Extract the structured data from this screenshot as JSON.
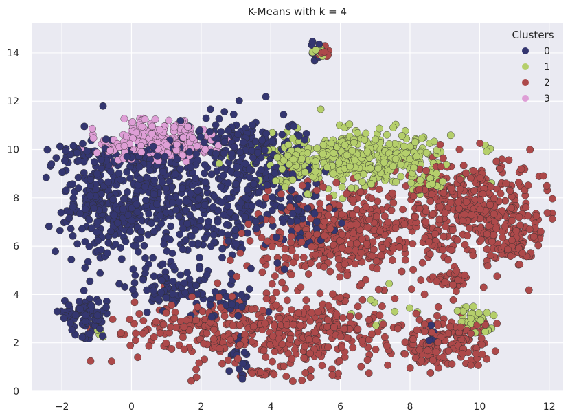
{
  "chart_data": {
    "type": "scatter",
    "title": "K-Means with k = 4",
    "xlabel": "",
    "ylabel": "",
    "xlim": [
      -2.85,
      12.4
    ],
    "ylim": [
      0,
      15.25
    ],
    "xticks": [
      -2,
      0,
      2,
      4,
      6,
      8,
      10,
      12
    ],
    "yticks": [
      0,
      2,
      4,
      6,
      8,
      10,
      12,
      14
    ],
    "grid": true,
    "legend": {
      "title": "Clusters",
      "placement": "top-right"
    },
    "series": [
      {
        "name": "0",
        "color": "#343670",
        "blobs": [
          {
            "cx": 1.6,
            "cy": 7.9,
            "sx": 1.6,
            "sy": 1.3,
            "n": 500
          },
          {
            "cx": 3.6,
            "cy": 9.4,
            "sx": 0.9,
            "sy": 0.9,
            "n": 170
          },
          {
            "cx": -0.8,
            "cy": 7.6,
            "sx": 0.7,
            "sy": 1.1,
            "n": 150
          },
          {
            "cx": 0.0,
            "cy": 9.7,
            "sx": 1.2,
            "sy": 0.35,
            "n": 110
          },
          {
            "cx": -1.3,
            "cy": 3.1,
            "sx": 0.3,
            "sy": 0.4,
            "n": 80
          },
          {
            "cx": 1.0,
            "cy": 4.2,
            "sx": 0.9,
            "sy": 0.4,
            "n": 70
          },
          {
            "cx": 3.1,
            "cy": 1.3,
            "sx": 0.15,
            "sy": 0.4,
            "n": 22
          },
          {
            "cx": 5.3,
            "cy": 14.1,
            "sx": 0.08,
            "sy": 0.2,
            "n": 15
          },
          {
            "cx": 5.0,
            "cy": 7.1,
            "sx": 0.4,
            "sy": 0.6,
            "n": 40
          },
          {
            "cx": 2.5,
            "cy": 3.8,
            "sx": 0.6,
            "sy": 0.3,
            "n": 40
          },
          {
            "cx": 3.0,
            "cy": 10.6,
            "sx": 0.6,
            "sy": 0.3,
            "n": 40
          },
          {
            "cx": 8.7,
            "cy": 2.2,
            "sx": 0.08,
            "sy": 0.2,
            "n": 8
          }
        ]
      },
      {
        "name": "1",
        "color": "#b5cf6b",
        "blobs": [
          {
            "cx": 6.6,
            "cy": 9.6,
            "sx": 1.3,
            "sy": 0.55,
            "n": 430
          },
          {
            "cx": 4.6,
            "cy": 9.3,
            "sx": 0.3,
            "sy": 0.6,
            "n": 40
          },
          {
            "cx": 9.9,
            "cy": 3.0,
            "sx": 0.25,
            "sy": 0.25,
            "n": 45
          },
          {
            "cx": 5.4,
            "cy": 14.1,
            "sx": 0.1,
            "sy": 0.15,
            "n": 10
          },
          {
            "cx": -0.9,
            "cy": 2.4,
            "sx": 0.06,
            "sy": 0.1,
            "n": 5
          },
          {
            "cx": 7.2,
            "cy": 3.5,
            "sx": 0.5,
            "sy": 0.6,
            "n": 10
          },
          {
            "cx": 8.5,
            "cy": 8.6,
            "sx": 0.3,
            "sy": 0.3,
            "n": 25
          }
        ]
      },
      {
        "name": "2",
        "color": "#ad494a",
        "blobs": [
          {
            "cx": 6.0,
            "cy": 6.5,
            "sx": 1.3,
            "sy": 0.9,
            "n": 420
          },
          {
            "cx": 9.6,
            "cy": 7.6,
            "sx": 1.1,
            "sy": 1.0,
            "n": 380
          },
          {
            "cx": 4.6,
            "cy": 2.5,
            "sx": 1.6,
            "sy": 0.85,
            "n": 380
          },
          {
            "cx": 9.0,
            "cy": 2.0,
            "sx": 0.6,
            "sy": 0.6,
            "n": 150
          },
          {
            "cx": 1.5,
            "cy": 2.6,
            "sx": 1.0,
            "sy": 0.45,
            "n": 90
          },
          {
            "cx": 10.9,
            "cy": 6.2,
            "sx": 0.4,
            "sy": 0.5,
            "n": 70
          },
          {
            "cx": 9.2,
            "cy": 4.6,
            "sx": 0.3,
            "sy": 0.3,
            "n": 30
          },
          {
            "cx": 5.5,
            "cy": 14.0,
            "sx": 0.1,
            "sy": 0.12,
            "n": 12
          },
          {
            "cx": 3.9,
            "cy": 0.8,
            "sx": 0.3,
            "sy": 0.1,
            "n": 15
          }
        ]
      },
      {
        "name": "3",
        "color": "#de9ed6",
        "blobs": [
          {
            "cx": 0.9,
            "cy": 10.3,
            "sx": 0.8,
            "sy": 0.35,
            "n": 210
          },
          {
            "cx": 0.2,
            "cy": 11.0,
            "sx": 0.15,
            "sy": 0.25,
            "n": 20
          },
          {
            "cx": -0.4,
            "cy": 9.9,
            "sx": 0.3,
            "sy": 0.2,
            "n": 20
          }
        ]
      }
    ]
  }
}
